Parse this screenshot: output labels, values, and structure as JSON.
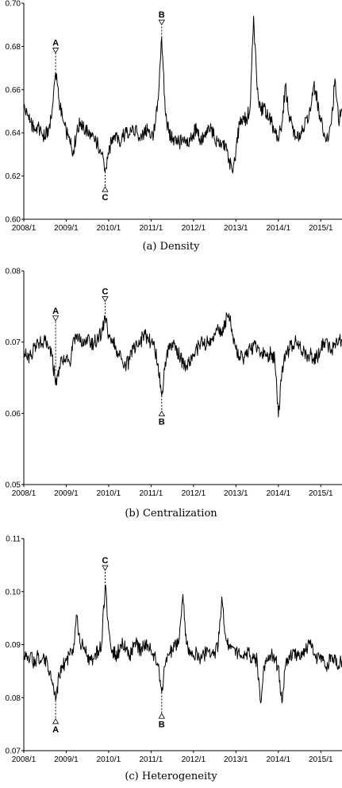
{
  "chart_data": [
    {
      "type": "line",
      "caption": "(a) Density",
      "xlim": [
        "2008-01",
        "2015-07"
      ],
      "ylim": [
        0.6,
        0.7
      ],
      "y_ticks": [
        0.6,
        0.62,
        0.64,
        0.66,
        0.68,
        0.7
      ],
      "y_tick_labels": [
        "0.60",
        "0.62",
        "0.64",
        "0.66",
        "0.68",
        "0.70"
      ],
      "x_ticks": [
        "2008-01",
        "2009-01",
        "2010-01",
        "2011-01",
        "2012-01",
        "2013-01",
        "2014-01",
        "2015-01"
      ],
      "x_tick_labels": [
        "2008/1",
        "2009/1",
        "2010/1",
        "2011/1",
        "2012/1",
        "2013/1",
        "2014/1",
        "2015/1"
      ],
      "grid": false,
      "points": [
        [
          "2008-01",
          0.652
        ],
        [
          "2008-02",
          0.648
        ],
        [
          "2008-03",
          0.645
        ],
        [
          "2008-04",
          0.641
        ],
        [
          "2008-05",
          0.643
        ],
        [
          "2008-06",
          0.64
        ],
        [
          "2008-07",
          0.638
        ],
        [
          "2008-08",
          0.642
        ],
        [
          "2008-09",
          0.65
        ],
        [
          "2008-10",
          0.668
        ],
        [
          "2008-11",
          0.655
        ],
        [
          "2008-12",
          0.646
        ],
        [
          "2009-01",
          0.64
        ],
        [
          "2009-02",
          0.636
        ],
        [
          "2009-03",
          0.632
        ],
        [
          "2009-04",
          0.64
        ],
        [
          "2009-05",
          0.645
        ],
        [
          "2009-06",
          0.642
        ],
        [
          "2009-07",
          0.641
        ],
        [
          "2009-08",
          0.638
        ],
        [
          "2009-09",
          0.636
        ],
        [
          "2009-10",
          0.635
        ],
        [
          "2009-11",
          0.63
        ],
        [
          "2009-12",
          0.622
        ],
        [
          "2010-01",
          0.63
        ],
        [
          "2010-02",
          0.638
        ],
        [
          "2010-03",
          0.64
        ],
        [
          "2010-04",
          0.636
        ],
        [
          "2010-05",
          0.638
        ],
        [
          "2010-06",
          0.64
        ],
        [
          "2010-07",
          0.639
        ],
        [
          "2010-08",
          0.642
        ],
        [
          "2010-09",
          0.64
        ],
        [
          "2010-10",
          0.638
        ],
        [
          "2010-11",
          0.64
        ],
        [
          "2010-12",
          0.641
        ],
        [
          "2011-01",
          0.638
        ],
        [
          "2011-02",
          0.641
        ],
        [
          "2011-03",
          0.655
        ],
        [
          "2011-04",
          0.684
        ],
        [
          "2011-05",
          0.65
        ],
        [
          "2011-06",
          0.64
        ],
        [
          "2011-07",
          0.637
        ],
        [
          "2011-08",
          0.636
        ],
        [
          "2011-09",
          0.635
        ],
        [
          "2011-10",
          0.638
        ],
        [
          "2011-11",
          0.637
        ],
        [
          "2011-12",
          0.636
        ],
        [
          "2012-01",
          0.64
        ],
        [
          "2012-02",
          0.642
        ],
        [
          "2012-03",
          0.636
        ],
        [
          "2012-04",
          0.638
        ],
        [
          "2012-05",
          0.64
        ],
        [
          "2012-06",
          0.642
        ],
        [
          "2012-07",
          0.637
        ],
        [
          "2012-08",
          0.636
        ],
        [
          "2012-09",
          0.635
        ],
        [
          "2012-10",
          0.634
        ],
        [
          "2012-11",
          0.628
        ],
        [
          "2012-12",
          0.622
        ],
        [
          "2013-01",
          0.632
        ],
        [
          "2013-02",
          0.644
        ],
        [
          "2013-03",
          0.648
        ],
        [
          "2013-04",
          0.646
        ],
        [
          "2013-05",
          0.652
        ],
        [
          "2013-06",
          0.694
        ],
        [
          "2013-07",
          0.66
        ],
        [
          "2013-08",
          0.65
        ],
        [
          "2013-09",
          0.652
        ],
        [
          "2013-10",
          0.648
        ],
        [
          "2013-11",
          0.645
        ],
        [
          "2013-12",
          0.64
        ],
        [
          "2014-01",
          0.636
        ],
        [
          "2014-02",
          0.645
        ],
        [
          "2014-03",
          0.662
        ],
        [
          "2014-04",
          0.648
        ],
        [
          "2014-05",
          0.642
        ],
        [
          "2014-06",
          0.638
        ],
        [
          "2014-07",
          0.64
        ],
        [
          "2014-08",
          0.642
        ],
        [
          "2014-09",
          0.647
        ],
        [
          "2014-10",
          0.65
        ],
        [
          "2014-11",
          0.662
        ],
        [
          "2014-12",
          0.655
        ],
        [
          "2015-01",
          0.645
        ],
        [
          "2015-02",
          0.64
        ],
        [
          "2015-03",
          0.636
        ],
        [
          "2015-04",
          0.644
        ],
        [
          "2015-05",
          0.665
        ],
        [
          "2015-06",
          0.646
        ],
        [
          "2015-07",
          0.65
        ]
      ],
      "annotations": [
        {
          "label": "A",
          "x": "2008-10",
          "y_from": 0.669,
          "y_to": 0.677,
          "direction": "above"
        },
        {
          "label": "B",
          "x": "2011-04",
          "y_from": 0.684,
          "y_to": 0.69,
          "direction": "above"
        },
        {
          "label": "C",
          "x": "2009-12",
          "y_from": 0.622,
          "y_to": 0.615,
          "direction": "below"
        }
      ]
    },
    {
      "type": "line",
      "caption": "(b) Centralization",
      "xlim": [
        "2008-01",
        "2015-07"
      ],
      "ylim": [
        0.05,
        0.08
      ],
      "y_ticks": [
        0.05,
        0.06,
        0.07,
        0.08
      ],
      "y_tick_labels": [
        "0.05",
        "0.06",
        "0.07",
        "0.08"
      ],
      "x_ticks": [
        "2008-01",
        "2009-01",
        "2010-01",
        "2011-01",
        "2012-01",
        "2013-01",
        "2014-01",
        "2015-01"
      ],
      "x_tick_labels": [
        "2008/1",
        "2009/1",
        "2010/1",
        "2011/1",
        "2012/1",
        "2013/1",
        "2014/1",
        "2015/1"
      ],
      "grid": false,
      "points": [
        [
          "2008-01",
          0.069
        ],
        [
          "2008-02",
          0.0675
        ],
        [
          "2008-03",
          0.068
        ],
        [
          "2008-04",
          0.0695
        ],
        [
          "2008-05",
          0.07
        ],
        [
          "2008-06",
          0.0698
        ],
        [
          "2008-07",
          0.0702
        ],
        [
          "2008-08",
          0.069
        ],
        [
          "2008-09",
          0.068
        ],
        [
          "2008-10",
          0.064
        ],
        [
          "2008-11",
          0.0665
        ],
        [
          "2008-12",
          0.0672
        ],
        [
          "2009-01",
          0.068
        ],
        [
          "2009-02",
          0.067
        ],
        [
          "2009-03",
          0.0705
        ],
        [
          "2009-04",
          0.071
        ],
        [
          "2009-05",
          0.07
        ],
        [
          "2009-06",
          0.0695
        ],
        [
          "2009-07",
          0.0702
        ],
        [
          "2009-08",
          0.0698
        ],
        [
          "2009-09",
          0.07
        ],
        [
          "2009-10",
          0.0705
        ],
        [
          "2009-11",
          0.0712
        ],
        [
          "2009-12",
          0.0735
        ],
        [
          "2010-01",
          0.071
        ],
        [
          "2010-02",
          0.07
        ],
        [
          "2010-03",
          0.0695
        ],
        [
          "2010-04",
          0.068
        ],
        [
          "2010-05",
          0.067
        ],
        [
          "2010-06",
          0.0668
        ],
        [
          "2010-07",
          0.0675
        ],
        [
          "2010-08",
          0.069
        ],
        [
          "2010-09",
          0.0695
        ],
        [
          "2010-10",
          0.07
        ],
        [
          "2010-11",
          0.071
        ],
        [
          "2010-12",
          0.0705
        ],
        [
          "2011-01",
          0.07
        ],
        [
          "2011-02",
          0.069
        ],
        [
          "2011-03",
          0.067
        ],
        [
          "2011-04",
          0.0625
        ],
        [
          "2011-05",
          0.0672
        ],
        [
          "2011-06",
          0.069
        ],
        [
          "2011-07",
          0.07
        ],
        [
          "2011-08",
          0.0695
        ],
        [
          "2011-09",
          0.068
        ],
        [
          "2011-10",
          0.067
        ],
        [
          "2011-11",
          0.0668
        ],
        [
          "2011-12",
          0.0672
        ],
        [
          "2012-01",
          0.068
        ],
        [
          "2012-02",
          0.069
        ],
        [
          "2012-03",
          0.07
        ],
        [
          "2012-04",
          0.0695
        ],
        [
          "2012-05",
          0.07
        ],
        [
          "2012-06",
          0.0705
        ],
        [
          "2012-07",
          0.0712
        ],
        [
          "2012-08",
          0.072
        ],
        [
          "2012-09",
          0.0715
        ],
        [
          "2012-10",
          0.073
        ],
        [
          "2012-11",
          0.074
        ],
        [
          "2012-12",
          0.071
        ],
        [
          "2013-01",
          0.069
        ],
        [
          "2013-02",
          0.068
        ],
        [
          "2013-03",
          0.0675
        ],
        [
          "2013-04",
          0.068
        ],
        [
          "2013-05",
          0.069
        ],
        [
          "2013-06",
          0.0695
        ],
        [
          "2013-07",
          0.069
        ],
        [
          "2013-08",
          0.0685
        ],
        [
          "2013-09",
          0.0688
        ],
        [
          "2013-10",
          0.0682
        ],
        [
          "2013-11",
          0.0685
        ],
        [
          "2013-12",
          0.0675
        ],
        [
          "2014-01",
          0.0595
        ],
        [
          "2014-02",
          0.066
        ],
        [
          "2014-03",
          0.068
        ],
        [
          "2014-04",
          0.069
        ],
        [
          "2014-05",
          0.0695
        ],
        [
          "2014-06",
          0.07
        ],
        [
          "2014-07",
          0.0695
        ],
        [
          "2014-08",
          0.0685
        ],
        [
          "2014-09",
          0.068
        ],
        [
          "2014-10",
          0.0682
        ],
        [
          "2014-11",
          0.0678
        ],
        [
          "2014-12",
          0.068
        ],
        [
          "2015-01",
          0.069
        ],
        [
          "2015-02",
          0.07
        ],
        [
          "2015-03",
          0.0695
        ],
        [
          "2015-04",
          0.069
        ],
        [
          "2015-05",
          0.0698
        ],
        [
          "2015-06",
          0.07
        ],
        [
          "2015-07",
          0.0702
        ]
      ],
      "annotations": [
        {
          "label": "A",
          "x": "2008-10",
          "y_from": 0.066,
          "y_to": 0.073,
          "direction": "above"
        },
        {
          "label": "C",
          "x": "2009-12",
          "y_from": 0.0735,
          "y_to": 0.0757,
          "direction": "above"
        },
        {
          "label": "B",
          "x": "2011-04",
          "y_from": 0.0625,
          "y_to": 0.0603,
          "direction": "below"
        }
      ]
    },
    {
      "type": "line",
      "caption": "(c) Heterogeneity",
      "xlim": [
        "2008-01",
        "2015-07"
      ],
      "ylim": [
        0.07,
        0.11
      ],
      "y_ticks": [
        0.07,
        0.08,
        0.09,
        0.1,
        0.11
      ],
      "y_tick_labels": [
        "0.07",
        "0.08",
        "0.09",
        "0.10",
        "0.11"
      ],
      "x_ticks": [
        "2008-01",
        "2009-01",
        "2010-01",
        "2011-01",
        "2012-01",
        "2013-01",
        "2014-01",
        "2015-01"
      ],
      "x_tick_labels": [
        "2008/1",
        "2009/1",
        "2010/1",
        "2011/1",
        "2012/1",
        "2013/1",
        "2014/1",
        "2015/1"
      ],
      "grid": false,
      "points": [
        [
          "2008-01",
          0.088
        ],
        [
          "2008-02",
          0.087
        ],
        [
          "2008-03",
          0.0885
        ],
        [
          "2008-04",
          0.086
        ],
        [
          "2008-05",
          0.088
        ],
        [
          "2008-06",
          0.087
        ],
        [
          "2008-07",
          0.0875
        ],
        [
          "2008-08",
          0.085
        ],
        [
          "2008-09",
          0.083
        ],
        [
          "2008-10",
          0.0795
        ],
        [
          "2008-11",
          0.084
        ],
        [
          "2008-12",
          0.086
        ],
        [
          "2009-01",
          0.087
        ],
        [
          "2009-02",
          0.088
        ],
        [
          "2009-03",
          0.0885
        ],
        [
          "2009-04",
          0.0955
        ],
        [
          "2009-05",
          0.09
        ],
        [
          "2009-06",
          0.0895
        ],
        [
          "2009-07",
          0.088
        ],
        [
          "2009-08",
          0.087
        ],
        [
          "2009-09",
          0.088
        ],
        [
          "2009-10",
          0.089
        ],
        [
          "2009-11",
          0.09
        ],
        [
          "2009-12",
          0.101
        ],
        [
          "2010-01",
          0.093
        ],
        [
          "2010-02",
          0.089
        ],
        [
          "2010-03",
          0.088
        ],
        [
          "2010-04",
          0.089
        ],
        [
          "2010-05",
          0.09
        ],
        [
          "2010-06",
          0.089
        ],
        [
          "2010-07",
          0.088
        ],
        [
          "2010-08",
          0.0895
        ],
        [
          "2010-09",
          0.09
        ],
        [
          "2010-10",
          0.089
        ],
        [
          "2010-11",
          0.0895
        ],
        [
          "2010-12",
          0.09
        ],
        [
          "2011-01",
          0.089
        ],
        [
          "2011-02",
          0.088
        ],
        [
          "2011-03",
          0.086
        ],
        [
          "2011-04",
          0.081
        ],
        [
          "2011-05",
          0.086
        ],
        [
          "2011-06",
          0.088
        ],
        [
          "2011-07",
          0.089
        ],
        [
          "2011-08",
          0.09
        ],
        [
          "2011-09",
          0.091
        ],
        [
          "2011-10",
          0.0995
        ],
        [
          "2011-11",
          0.09
        ],
        [
          "2011-12",
          0.089
        ],
        [
          "2012-01",
          0.088
        ],
        [
          "2012-02",
          0.0885
        ],
        [
          "2012-03",
          0.0875
        ],
        [
          "2012-04",
          0.088
        ],
        [
          "2012-05",
          0.089
        ],
        [
          "2012-06",
          0.088
        ],
        [
          "2012-07",
          0.0885
        ],
        [
          "2012-08",
          0.09
        ],
        [
          "2012-09",
          0.099
        ],
        [
          "2012-10",
          0.092
        ],
        [
          "2012-11",
          0.09
        ],
        [
          "2012-12",
          0.0895
        ],
        [
          "2013-01",
          0.089
        ],
        [
          "2013-02",
          0.088
        ],
        [
          "2013-03",
          0.0875
        ],
        [
          "2013-04",
          0.0885
        ],
        [
          "2013-05",
          0.088
        ],
        [
          "2013-06",
          0.0875
        ],
        [
          "2013-07",
          0.087
        ],
        [
          "2013-08",
          0.079
        ],
        [
          "2013-09",
          0.086
        ],
        [
          "2013-10",
          0.087
        ],
        [
          "2013-11",
          0.088
        ],
        [
          "2013-12",
          0.087
        ],
        [
          "2014-01",
          0.086
        ],
        [
          "2014-02",
          0.079
        ],
        [
          "2014-03",
          0.086
        ],
        [
          "2014-04",
          0.088
        ],
        [
          "2014-05",
          0.0885
        ],
        [
          "2014-06",
          0.088
        ],
        [
          "2014-07",
          0.0875
        ],
        [
          "2014-08",
          0.088
        ],
        [
          "2014-09",
          0.089
        ],
        [
          "2014-10",
          0.09
        ],
        [
          "2014-11",
          0.088
        ],
        [
          "2014-12",
          0.087
        ],
        [
          "2015-01",
          0.088
        ],
        [
          "2015-02",
          0.087
        ],
        [
          "2015-03",
          0.086
        ],
        [
          "2015-04",
          0.088
        ],
        [
          "2015-05",
          0.0875
        ],
        [
          "2015-06",
          0.086
        ],
        [
          "2015-07",
          0.087
        ]
      ],
      "annotations": [
        {
          "label": "C",
          "x": "2009-12",
          "y_from": 0.101,
          "y_to": 0.104,
          "direction": "above"
        },
        {
          "label": "A",
          "x": "2008-10",
          "y_from": 0.0795,
          "y_to": 0.076,
          "direction": "below"
        },
        {
          "label": "B",
          "x": "2011-04",
          "y_from": 0.081,
          "y_to": 0.077,
          "direction": "below"
        }
      ]
    }
  ]
}
